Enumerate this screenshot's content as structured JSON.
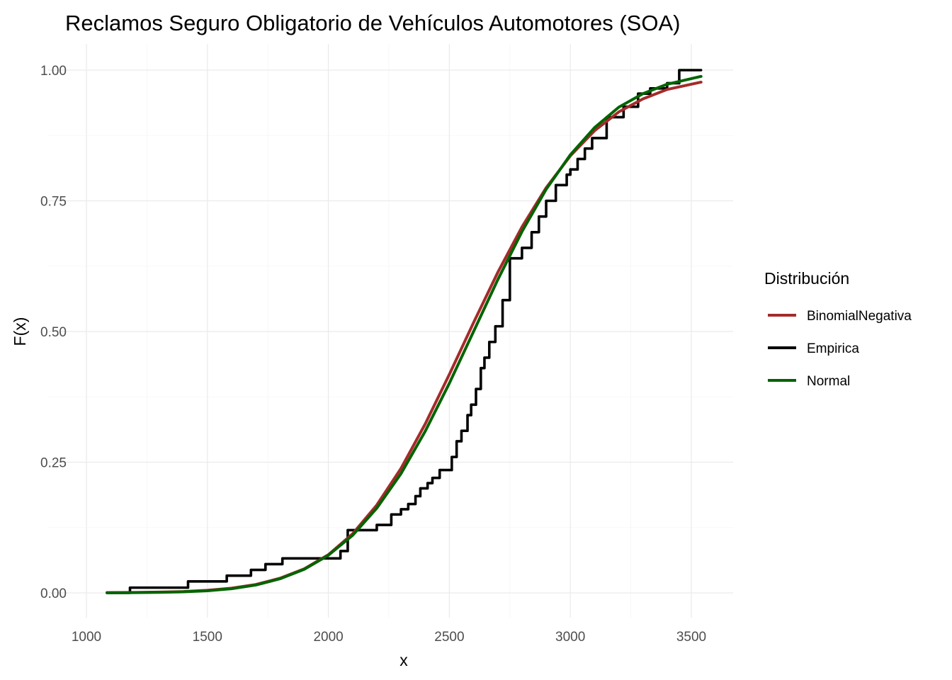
{
  "chart_data": {
    "type": "line",
    "title": "Reclamos Seguro Obligatorio de Vehículos Automotores (SOA)",
    "xlabel": "x",
    "ylabel": "F(x)",
    "xlim": [
      1085,
      3540
    ],
    "ylim": [
      0,
      1
    ],
    "x_ticks": [
      1000,
      1500,
      2000,
      2500,
      3000,
      3500
    ],
    "y_ticks": [
      0.0,
      0.25,
      0.5,
      0.75,
      1.0
    ],
    "x_tick_labels": [
      "1000",
      "1500",
      "2000",
      "2500",
      "3000",
      "3500"
    ],
    "y_tick_labels": [
      "0.00",
      "0.25",
      "0.50",
      "0.75",
      "1.00"
    ],
    "grid": true,
    "legend": {
      "title": "Distribución",
      "position": "right",
      "entries": [
        "BinomialNegativa",
        "Empirica",
        "Normal"
      ]
    },
    "series": [
      {
        "name": "BinomialNegativa",
        "color": "#a52a2a",
        "x": [
          1085,
          1200,
          1300,
          1400,
          1500,
          1600,
          1700,
          1800,
          1900,
          2000,
          2100,
          2200,
          2300,
          2400,
          2500,
          2600,
          2700,
          2800,
          2900,
          3000,
          3100,
          3200,
          3300,
          3400,
          3540
        ],
        "y": [
          0.0005,
          0.0008,
          0.0015,
          0.0025,
          0.005,
          0.009,
          0.016,
          0.028,
          0.046,
          0.073,
          0.113,
          0.168,
          0.238,
          0.323,
          0.418,
          0.517,
          0.613,
          0.7,
          0.775,
          0.836,
          0.884,
          0.92,
          0.945,
          0.963,
          0.977
        ]
      },
      {
        "name": "Empirica",
        "color": "#000000",
        "step": true,
        "x": [
          1085,
          1180,
          1420,
          1580,
          1680,
          1740,
          1810,
          2050,
          2080,
          2200,
          2260,
          2300,
          2330,
          2360,
          2380,
          2410,
          2430,
          2460,
          2510,
          2530,
          2550,
          2575,
          2590,
          2610,
          2630,
          2645,
          2665,
          2690,
          2720,
          2750,
          2800,
          2840,
          2870,
          2900,
          2940,
          2985,
          3000,
          3030,
          3060,
          3090,
          3150,
          3220,
          3280,
          3330,
          3400,
          3450,
          3540
        ],
        "y": [
          0.0,
          0.01,
          0.022,
          0.033,
          0.044,
          0.055,
          0.066,
          0.08,
          0.12,
          0.13,
          0.15,
          0.16,
          0.17,
          0.185,
          0.2,
          0.21,
          0.22,
          0.235,
          0.26,
          0.29,
          0.31,
          0.34,
          0.36,
          0.39,
          0.43,
          0.45,
          0.48,
          0.51,
          0.56,
          0.64,
          0.66,
          0.69,
          0.72,
          0.75,
          0.78,
          0.8,
          0.81,
          0.83,
          0.85,
          0.87,
          0.91,
          0.93,
          0.955,
          0.965,
          0.975,
          1.0,
          1.0
        ]
      },
      {
        "name": "Normal",
        "color": "#006400",
        "x": [
          1085,
          1200,
          1300,
          1400,
          1500,
          1600,
          1700,
          1800,
          1900,
          2000,
          2100,
          2200,
          2300,
          2400,
          2500,
          2600,
          2700,
          2800,
          2900,
          3000,
          3100,
          3200,
          3300,
          3400,
          3540
        ],
        "y": [
          0.0002,
          0.0005,
          0.001,
          0.002,
          0.004,
          0.008,
          0.015,
          0.027,
          0.045,
          0.072,
          0.11,
          0.162,
          0.228,
          0.309,
          0.401,
          0.5,
          0.599,
          0.691,
          0.772,
          0.838,
          0.89,
          0.929,
          0.955,
          0.973,
          0.988
        ]
      }
    ]
  }
}
